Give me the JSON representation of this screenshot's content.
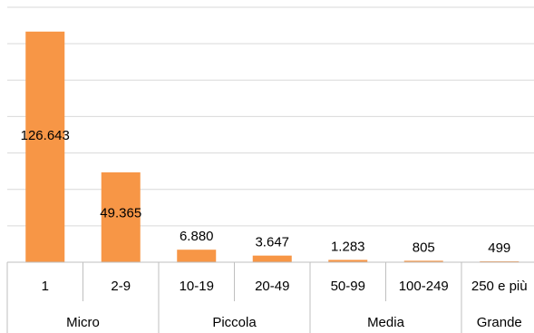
{
  "chart_data": {
    "type": "bar",
    "categories": [
      "1",
      "2-9",
      "10-19",
      "20-49",
      "50-99",
      "100-249",
      "250 e più"
    ],
    "values": [
      126643,
      49365,
      6880,
      3647,
      1283,
      805,
      499
    ],
    "data_labels": [
      "126.643",
      "49.365",
      "6.880",
      "3.647",
      "1.283",
      "805",
      "499"
    ],
    "groups": [
      {
        "label": "Micro",
        "span": 2
      },
      {
        "label": "Piccola",
        "span": 2
      },
      {
        "label": "Media",
        "span": 2
      },
      {
        "label": "Grande",
        "span": 1
      }
    ],
    "ylim": [
      0,
      140000
    ],
    "gridlines": [
      0,
      20000,
      40000,
      60000,
      80000,
      100000,
      120000,
      140000
    ],
    "bar_color": "#f79646",
    "grid": true
  }
}
